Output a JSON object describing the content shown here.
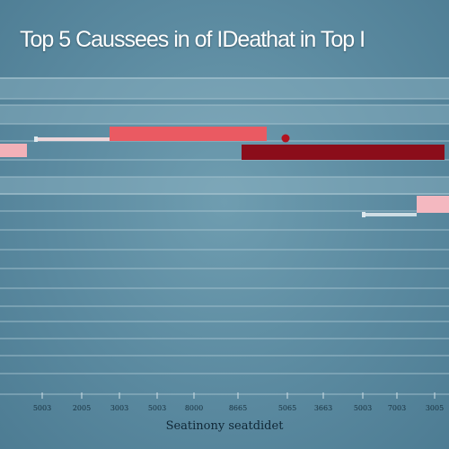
{
  "chart_data": {
    "type": "bar",
    "title": "Top 5 Caussees in of IDeathat in Top I",
    "xlabel": "Seatinony seatdidet",
    "ylabel": "",
    "tick_labels": [
      "5003",
      "2005",
      "3003",
      "5003",
      "8000",
      "8665",
      "5065",
      "3663",
      "5003",
      "7003",
      "3005"
    ],
    "grid": true,
    "bars": [
      {
        "start": 122,
        "end": 297,
        "color": "#ea5a62"
      },
      {
        "start": 0,
        "end": 30,
        "color": "#f2b1b8"
      },
      {
        "start": 269,
        "end": 495,
        "color": "#8b0d1a"
      },
      {
        "start": 464,
        "end": 500,
        "color": "#f4b8c0"
      }
    ],
    "whiskers": [
      {
        "start": 38,
        "end": 122,
        "color": "#f4d9dc"
      },
      {
        "start": 403,
        "end": 464,
        "color": "#d4e2e8"
      }
    ],
    "points": [
      {
        "x": 318,
        "color": "#b2121f"
      }
    ],
    "colors": {
      "grid": "#a9c6d2",
      "text": "#ffffff",
      "axis_text": "#17313f"
    }
  }
}
